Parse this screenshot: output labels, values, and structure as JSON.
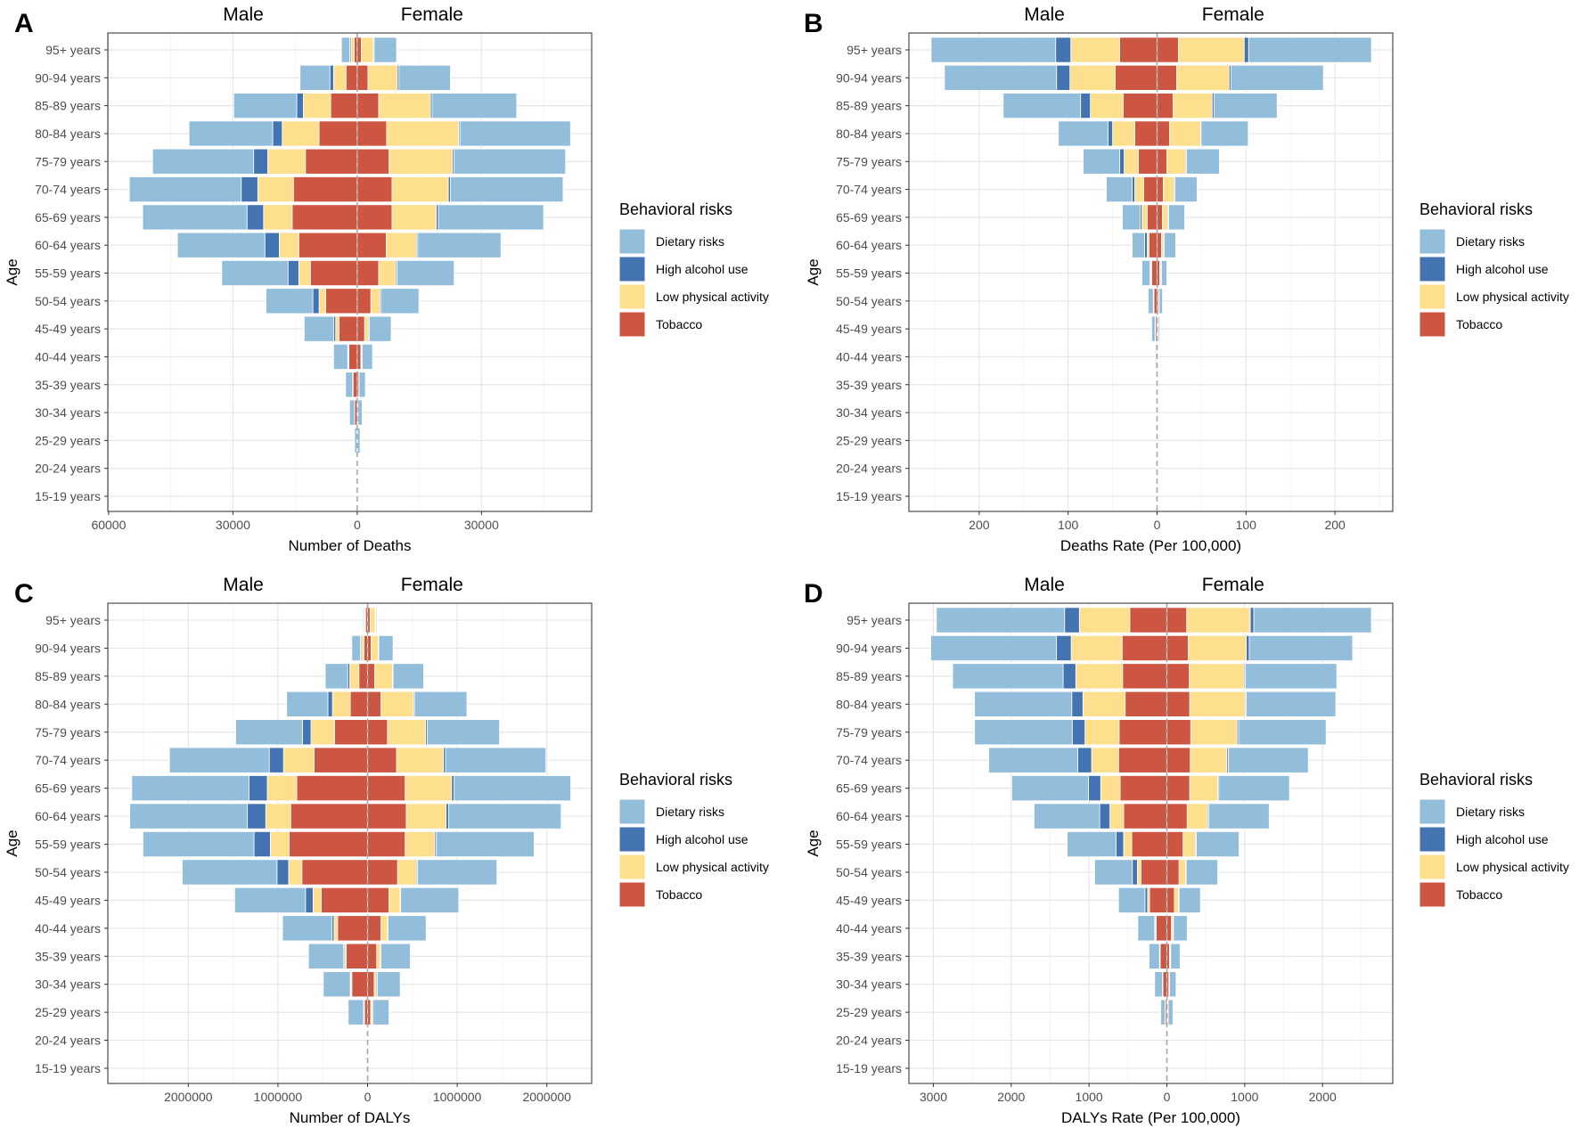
{
  "legend": {
    "title": "Behavioral risks",
    "items": [
      "Dietary risks",
      "High alcohol use",
      "Low physical activity",
      "Tobacco"
    ]
  },
  "colors": {
    "Dietary risks": "#92bedb",
    "High alcohol use": "#4473b2",
    "Low physical activity": "#fddf8e",
    "Tobacco": "#cd5642"
  },
  "facets": [
    "Male",
    "Female"
  ],
  "categories": [
    "95+ years",
    "90-94 years",
    "85-89 years",
    "80-84 years",
    "75-79 years",
    "70-74 years",
    "65-69 years",
    "60-64 years",
    "55-59 years",
    "50-54 years",
    "45-49 years",
    "40-44 years",
    "35-39 years",
    "30-34 years",
    "25-29 years",
    "20-24 years",
    "15-19 years"
  ],
  "chart_data": [
    {
      "panel": "A",
      "type": "bar",
      "orientation": "horizontal-diverging-stacked",
      "xlabel": "Number of Deaths",
      "ylabel": "Age",
      "xlim": [
        -60200,
        56600
      ],
      "ticks": [
        -60000,
        -30000,
        0,
        30000
      ],
      "tick_labels": [
        "60000",
        "30000",
        "0",
        "30000"
      ],
      "grid": true,
      "legend_position": "right",
      "series": [
        {
          "name": "Tobacco",
          "male": [
            700,
            2700,
            6400,
            9200,
            12500,
            15400,
            15700,
            14100,
            11300,
            7600,
            4400,
            2000,
            1000,
            600,
            50,
            10,
            5
          ],
          "female": [
            1000,
            2600,
            5200,
            7100,
            7700,
            8400,
            8400,
            7000,
            5200,
            3300,
            1800,
            900,
            400,
            150,
            30,
            5,
            2
          ]
        },
        {
          "name": "Low physical activity",
          "male": [
            800,
            3000,
            6600,
            8900,
            9100,
            8600,
            6900,
            4700,
            2800,
            1600,
            800,
            200,
            50,
            20,
            10,
            0,
            0
          ],
          "female": [
            2900,
            7100,
            12500,
            17400,
            15300,
            13600,
            10700,
            7300,
            4100,
            2200,
            900,
            200,
            50,
            20,
            10,
            0,
            0
          ]
        },
        {
          "name": "High alcohol use",
          "male": [
            300,
            900,
            1600,
            2300,
            3400,
            4000,
            4000,
            3500,
            2600,
            1500,
            500,
            100,
            50,
            20,
            10,
            0,
            0
          ],
          "female": [
            200,
            400,
            400,
            300,
            400,
            500,
            500,
            300,
            300,
            300,
            200,
            100,
            20,
            10,
            10,
            0,
            0
          ]
        },
        {
          "name": "Dietary risks",
          "male": [
            2000,
            7200,
            15200,
            20200,
            24400,
            27000,
            25200,
            21100,
            16000,
            11300,
            7100,
            3400,
            1700,
            1200,
            550,
            40,
            20
          ],
          "female": [
            5400,
            12400,
            20400,
            26700,
            26900,
            27200,
            25400,
            20100,
            13800,
            9100,
            5300,
            2500,
            1500,
            1000,
            650,
            30,
            10
          ]
        }
      ]
    },
    {
      "panel": "B",
      "type": "bar",
      "orientation": "horizontal-diverging-stacked",
      "xlabel": "Deaths Rate (Per 100,000)",
      "ylabel": "Age",
      "xlim": [
        -279,
        265
      ],
      "ticks": [
        -200,
        -100,
        0,
        100,
        200
      ],
      "tick_labels": [
        "200",
        "100",
        "0",
        "100",
        "200"
      ],
      "grid": true,
      "legend_position": "right",
      "series": [
        {
          "name": "Tobacco",
          "male": [
            42,
            47,
            38,
            25,
            21,
            15,
            11,
            9,
            6,
            3.4,
            1.7,
            0.6,
            0.3,
            0.2,
            0.05,
            0.02,
            0.01
          ],
          "female": [
            24,
            22,
            18,
            14,
            11,
            7,
            6,
            5,
            3,
            1.7,
            1.1,
            0.3,
            0.1,
            0.05,
            0.02,
            0.01,
            0
          ]
        },
        {
          "name": "Low physical activity",
          "male": [
            55,
            51,
            37,
            25,
            16,
            10,
            6,
            2,
            1,
            0.6,
            0.3,
            0.1,
            0.05,
            0,
            0,
            0,
            0
          ],
          "female": [
            74,
            59,
            44,
            35,
            21,
            12,
            6,
            2,
            1,
            0.6,
            0.4,
            0.1,
            0.02,
            0,
            0,
            0,
            0
          ]
        },
        {
          "name": "High alcohol use",
          "male": [
            17,
            15,
            11,
            5,
            5,
            3,
            2,
            3,
            1,
            0.3,
            0.3,
            0.1,
            0.05,
            0,
            0,
            0,
            0
          ],
          "female": [
            5,
            2,
            2,
            0.5,
            1,
            1,
            1,
            1,
            1,
            0.1,
            0.1,
            0.05,
            0,
            0,
            0,
            0,
            0
          ]
        },
        {
          "name": "Dietary risks",
          "male": [
            140,
            126,
            87,
            56,
            41,
            29,
            20,
            14,
            9,
            5.7,
            3.7,
            1.2,
            0.5,
            0.3,
            0.15,
            0.05,
            0.02
          ],
          "female": [
            138,
            104,
            71,
            53,
            37,
            25,
            18,
            13,
            6,
            3.7,
            1.4,
            0.8,
            0.2,
            0.15,
            0.08,
            0.03,
            0.01
          ]
        }
      ]
    },
    {
      "panel": "C",
      "type": "bar",
      "orientation": "horizontal-diverging-stacked",
      "xlabel": "Number of DALYs",
      "ylabel": "Age",
      "xlim": [
        -2898000,
        2500000
      ],
      "ticks": [
        -2000000,
        -1000000,
        0,
        1000000,
        2000000
      ],
      "tick_labels": [
        "2000000",
        "1000000",
        "0",
        "1000000",
        "2000000"
      ],
      "grid": true,
      "legend_position": "right",
      "series": [
        {
          "name": "Tobacco",
          "male": [
            23000,
            40000,
            97000,
            193000,
            369000,
            597000,
            790000,
            858000,
            875000,
            733000,
            517000,
            335000,
            239000,
            176000,
            34000,
            2000,
            500
          ],
          "female": [
            28000,
            40000,
            80000,
            148000,
            222000,
            324000,
            420000,
            432000,
            420000,
            335000,
            239000,
            148000,
            102000,
            74000,
            34000,
            1000,
            300
          ]
        },
        {
          "name": "Low physical activity",
          "male": [
            11000,
            28000,
            102000,
            199000,
            262000,
            341000,
            329000,
            278000,
            210000,
            148000,
            91000,
            40000,
            17000,
            12000,
            6000,
            300,
            100
          ],
          "female": [
            57000,
            79000,
            198000,
            363000,
            426000,
            523000,
            518000,
            443000,
            330000,
            210000,
            125000,
            74000,
            40000,
            23000,
            17000,
            300,
            100
          ]
        },
        {
          "name": "High alcohol use",
          "male": [
            6000,
            12000,
            23000,
            51000,
            96000,
            159000,
            205000,
            205000,
            182000,
            130000,
            85000,
            23000,
            11000,
            5000,
            5000,
            300,
            100
          ],
          "female": [
            6000,
            6000,
            6000,
            12000,
            17000,
            22000,
            28000,
            28000,
            17000,
            12000,
            5000,
            5000,
            6000,
            11000,
            11000,
            300,
            100
          ]
        },
        {
          "name": "Dietary risks",
          "male": [
            11000,
            96000,
            250000,
            460000,
            745000,
            1113000,
            1307000,
            1312000,
            1239000,
            1057000,
            790000,
            551000,
            392000,
            301000,
            171000,
            5000,
            1500
          ],
          "female": [
            11000,
            159000,
            341000,
            585000,
            807000,
            1120000,
            1301000,
            1256000,
            1091000,
            886000,
            648000,
            426000,
            329000,
            256000,
            177000,
            3000,
            1000
          ]
        }
      ]
    },
    {
      "panel": "D",
      "type": "bar",
      "orientation": "horizontal-diverging-stacked",
      "xlabel": "DALYs Rate (Per 100,000)",
      "ylabel": "Age",
      "xlim": [
        -3314,
        2902
      ],
      "ticks": [
        -3000,
        -2000,
        -1000,
        0,
        1000,
        2000
      ],
      "tick_labels": [
        "3000",
        "2000",
        "1000",
        "0",
        "1000",
        "2000"
      ],
      "grid": true,
      "legend_position": "right",
      "series": [
        {
          "name": "Tobacco",
          "male": [
            477,
            575,
            569,
            536,
            614,
            621,
            601,
            556,
            451,
            333,
            222,
            137,
            85,
            52,
            20,
            2,
            1
          ],
          "female": [
            255,
            275,
            288,
            294,
            307,
            301,
            294,
            261,
            209,
            157,
            98,
            59,
            33,
            26,
            13,
            1,
            0
          ]
        },
        {
          "name": "Low physical activity",
          "male": [
            647,
            654,
            601,
            542,
            438,
            346,
            249,
            176,
            105,
            46,
            26,
            10,
            5,
            3,
            2,
            0,
            0
          ],
          "female": [
            817,
            745,
            705,
            713,
            595,
            470,
            360,
            262,
            157,
            85,
            52,
            19,
            13,
            5,
            3,
            0,
            0
          ]
        },
        {
          "name": "High alcohol use",
          "male": [
            190,
            189,
            163,
            144,
            164,
            177,
            157,
            131,
            98,
            65,
            33,
            10,
            5,
            3,
            2,
            0,
            0
          ],
          "female": [
            46,
            39,
            14,
            13,
            20,
            20,
            13,
            13,
            13,
            6,
            7,
            7,
            3,
            3,
            2,
            0,
            0
          ]
        },
        {
          "name": "Dietary risks",
          "male": [
            1647,
            1615,
            1419,
            1249,
            1255,
            1144,
            986,
            843,
            627,
            484,
            340,
            216,
            134,
            99,
            54,
            3,
            1
          ],
          "female": [
            1509,
            1327,
            1176,
            1150,
            1124,
            1026,
            908,
            778,
            549,
            406,
            274,
            176,
            121,
            84,
            60,
            2,
            1
          ]
        }
      ]
    }
  ]
}
